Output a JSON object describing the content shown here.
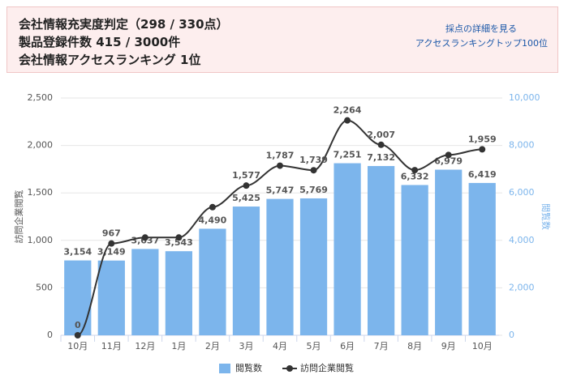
{
  "header": {
    "lines": [
      "会社情報充実度判定（298 / 330点）",
      "製品登録件数 415 / 3000件",
      "会社情報アクセスランキング 1位"
    ],
    "links": [
      "採点の詳細を見る",
      "アクセスランキングトップ100位"
    ]
  },
  "chart_data": {
    "type": "bar-line",
    "categories": [
      "10月",
      "11月",
      "12月",
      "1月",
      "2月",
      "3月",
      "4月",
      "5月",
      "6月",
      "7月",
      "8月",
      "9月",
      "10月"
    ],
    "ylabel": "訪問企業閲覧",
    "y2label": "閲覧数",
    "ylim": [
      0,
      2500
    ],
    "yticks": [
      0,
      500,
      {
        "value": 1000,
        "label": "1,000"
      },
      {
        "value": 1500,
        "label": "1,500"
      },
      {
        "value": 2000,
        "label": "2,000"
      },
      {
        "value": 2500,
        "label": "2,500"
      }
    ],
    "y2lim": [
      0,
      10000
    ],
    "y2ticks": [
      0,
      {
        "value": 2000,
        "label": "2,000"
      },
      {
        "value": 4000,
        "label": "4,000"
      },
      {
        "value": 6000,
        "label": "6,000"
      },
      {
        "value": 8000,
        "label": "8,000"
      },
      {
        "value": 10000,
        "label": "10,000"
      }
    ],
    "grid": true,
    "legend": "bottom",
    "series": [
      {
        "name": "閲覧数",
        "type": "bar",
        "axis": "y2",
        "color": "#7cb5ec",
        "values": [
          3154,
          3149,
          3637,
          3543,
          4490,
          5425,
          5747,
          5769,
          7251,
          7132,
          6332,
          6979,
          6419
        ],
        "value_labels": [
          "3,154",
          "3,149",
          "3,637",
          "3,543",
          "4,490",
          "5,425",
          "5,747",
          "5,769",
          "7,251",
          "7,132",
          "6,332",
          "6,979",
          "6,419"
        ]
      },
      {
        "name": "訪問企業閲覧",
        "type": "line",
        "axis": "y",
        "color": "#333333",
        "values": [
          0,
          967,
          1030,
          1030,
          1350,
          1577,
          1787,
          1739,
          2264,
          2007,
          1740,
          1900,
          1959
        ],
        "value_labels": [
          "0",
          "967",
          null,
          null,
          null,
          "1,577",
          "1,787",
          "1,739",
          "2,264",
          "2,007",
          null,
          null,
          "1,959"
        ]
      }
    ]
  }
}
